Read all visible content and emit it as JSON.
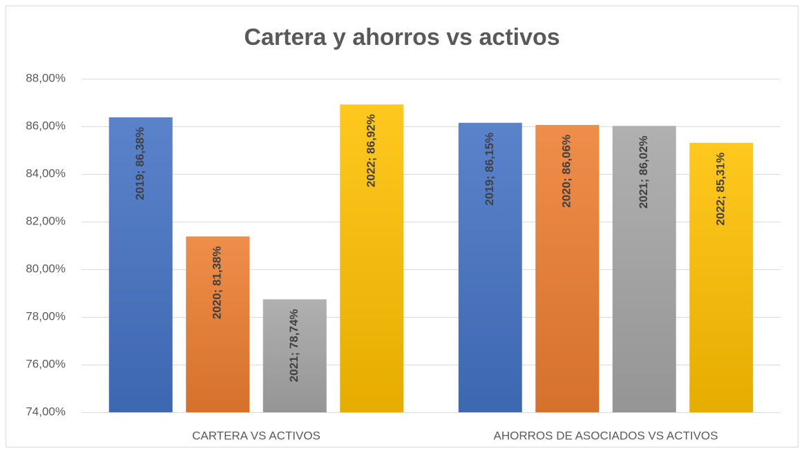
{
  "chart_data": {
    "type": "bar",
    "title": "Cartera y ahorros vs activos",
    "categories": [
      "CARTERA VS ACTIVOS",
      "AHORROS DE ASOCIADOS VS ACTIVOS"
    ],
    "series": [
      {
        "color": "#4472c4",
        "values": [
          86.38,
          86.15
        ],
        "value_labels": [
          "2019; 86,38%",
          "2019; 86,15%"
        ]
      },
      {
        "color": "#ed7d31",
        "values": [
          81.38,
          86.06
        ],
        "value_labels": [
          "2020; 81,38%",
          "2020; 86,06%"
        ]
      },
      {
        "color": "#a5a5a5",
        "values": [
          78.74,
          86.02
        ],
        "value_labels": [
          "2021; 78,74%",
          "2021; 86,02%"
        ]
      },
      {
        "color": "#ffc000",
        "values": [
          86.92,
          85.31
        ],
        "value_labels": [
          "2022; 86,92%",
          "2022; 85,31%"
        ]
      }
    ],
    "ylim": [
      74,
      88
    ],
    "yticks": [
      {
        "value": 74,
        "label": "74,00%"
      },
      {
        "value": 76,
        "label": "76,00%"
      },
      {
        "value": 78,
        "label": "78,00%"
      },
      {
        "value": 80,
        "label": "80,00%"
      },
      {
        "value": 82,
        "label": "82,00%"
      },
      {
        "value": 84,
        "label": "84,00%"
      },
      {
        "value": 86,
        "label": "86,00%"
      },
      {
        "value": 88,
        "label": "88,00%"
      }
    ],
    "grid": true
  }
}
